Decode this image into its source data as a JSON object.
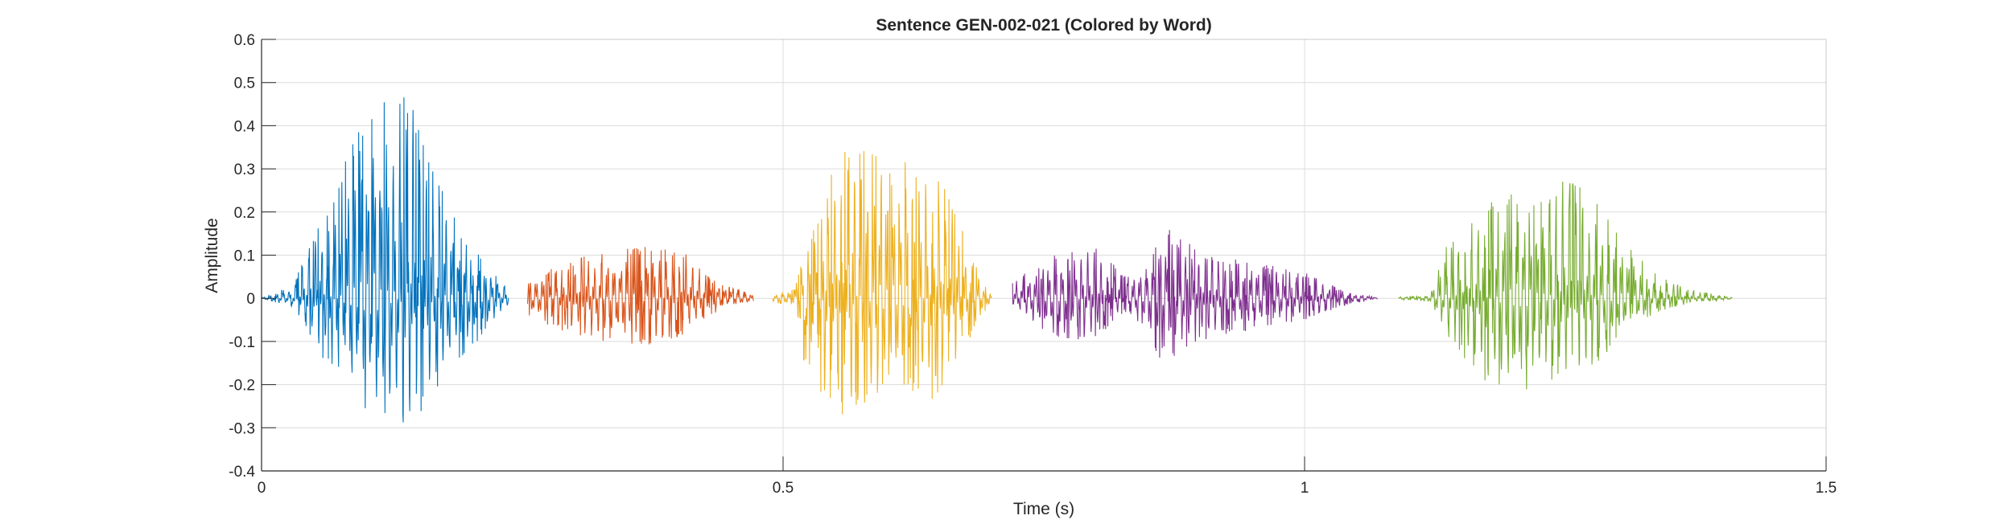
{
  "chart_data": {
    "type": "line",
    "title": "Sentence GEN-002-021 (Colored by Word)",
    "xlabel": "Time (s)",
    "ylabel": "Amplitude",
    "xlim": [
      0,
      1.5
    ],
    "ylim": [
      -0.4,
      0.6
    ],
    "x_ticks": [
      0,
      0.5,
      1,
      1.5
    ],
    "x_tick_labels": [
      "0",
      "0.5",
      "1",
      "1.5"
    ],
    "y_ticks": [
      -0.4,
      -0.3,
      -0.2,
      -0.1,
      0,
      0.1,
      0.2,
      0.3,
      0.4,
      0.5,
      0.6
    ],
    "y_tick_labels": [
      "-0.4",
      "-0.3",
      "-0.2",
      "-0.1",
      "0",
      "0.1",
      "0.2",
      "0.3",
      "0.4",
      "0.5",
      "0.6"
    ],
    "grid": true,
    "series": [
      {
        "color": "#0072BD",
        "t_start": 0.0,
        "t_end": 0.237,
        "peaks": [
          [
            0.0,
            0.002
          ],
          [
            0.03,
            0.03
          ],
          [
            0.06,
            0.2
          ],
          [
            0.09,
            0.38
          ],
          [
            0.11,
            0.48
          ],
          [
            0.135,
            0.5
          ],
          [
            0.16,
            0.36
          ],
          [
            0.19,
            0.16
          ],
          [
            0.215,
            0.08
          ],
          [
            0.237,
            0.02
          ]
        ],
        "troughs": [
          [
            0.0,
            -0.002
          ],
          [
            0.03,
            -0.02
          ],
          [
            0.06,
            -0.15
          ],
          [
            0.09,
            -0.24
          ],
          [
            0.11,
            -0.29
          ],
          [
            0.14,
            -0.32
          ],
          [
            0.17,
            -0.22
          ],
          [
            0.2,
            -0.12
          ],
          [
            0.237,
            -0.02
          ]
        ]
      },
      {
        "color": "#D95319",
        "t_start": 0.255,
        "t_end": 0.472,
        "peaks": [
          [
            0.255,
            0.05
          ],
          [
            0.28,
            0.07
          ],
          [
            0.31,
            0.1
          ],
          [
            0.35,
            0.12
          ],
          [
            0.38,
            0.12
          ],
          [
            0.41,
            0.1
          ],
          [
            0.43,
            0.05
          ],
          [
            0.45,
            0.025
          ],
          [
            0.472,
            0.01
          ]
        ],
        "troughs": [
          [
            0.255,
            -0.04
          ],
          [
            0.28,
            -0.07
          ],
          [
            0.31,
            -0.1
          ],
          [
            0.35,
            -0.11
          ],
          [
            0.38,
            -0.11
          ],
          [
            0.41,
            -0.08
          ],
          [
            0.43,
            -0.04
          ],
          [
            0.45,
            -0.02
          ],
          [
            0.472,
            -0.01
          ]
        ]
      },
      {
        "color": "#EDB120",
        "t_start": 0.49,
        "t_end": 0.7,
        "peaks": [
          [
            0.49,
            0.01
          ],
          [
            0.51,
            0.02
          ],
          [
            0.52,
            0.1
          ],
          [
            0.55,
            0.33
          ],
          [
            0.58,
            0.36
          ],
          [
            0.6,
            0.3
          ],
          [
            0.63,
            0.33
          ],
          [
            0.65,
            0.29
          ],
          [
            0.67,
            0.17
          ],
          [
            0.69,
            0.05
          ],
          [
            0.7,
            0.01
          ]
        ],
        "troughs": [
          [
            0.49,
            -0.01
          ],
          [
            0.51,
            -0.02
          ],
          [
            0.52,
            -0.15
          ],
          [
            0.55,
            -0.28
          ],
          [
            0.58,
            -0.24
          ],
          [
            0.6,
            -0.2
          ],
          [
            0.63,
            -0.22
          ],
          [
            0.65,
            -0.25
          ],
          [
            0.67,
            -0.14
          ],
          [
            0.69,
            -0.04
          ],
          [
            0.7,
            -0.01
          ]
        ]
      },
      {
        "color": "#7E2F8E",
        "t_start": 0.72,
        "t_end": 1.07,
        "peaks": [
          [
            0.72,
            0.04
          ],
          [
            0.74,
            0.07
          ],
          [
            0.77,
            0.12
          ],
          [
            0.8,
            0.12
          ],
          [
            0.83,
            0.05
          ],
          [
            0.85,
            0.08
          ],
          [
            0.865,
            0.17
          ],
          [
            0.88,
            0.14
          ],
          [
            0.91,
            0.1
          ],
          [
            0.96,
            0.08
          ],
          [
            1.0,
            0.06
          ],
          [
            1.04,
            0.015
          ],
          [
            1.07,
            0.002
          ]
        ],
        "troughs": [
          [
            0.72,
            -0.02
          ],
          [
            0.74,
            -0.07
          ],
          [
            0.77,
            -0.1
          ],
          [
            0.8,
            -0.09
          ],
          [
            0.83,
            -0.03
          ],
          [
            0.85,
            -0.08
          ],
          [
            0.865,
            -0.17
          ],
          [
            0.88,
            -0.12
          ],
          [
            0.91,
            -0.09
          ],
          [
            0.96,
            -0.07
          ],
          [
            1.0,
            -0.05
          ],
          [
            1.04,
            -0.015
          ],
          [
            1.07,
            -0.002
          ]
        ]
      },
      {
        "color": "#77AC30",
        "t_start": 1.09,
        "t_end": 1.41,
        "peaks": [
          [
            1.09,
            0.004
          ],
          [
            1.12,
            0.008
          ],
          [
            1.13,
            0.1
          ],
          [
            1.16,
            0.2
          ],
          [
            1.19,
            0.26
          ],
          [
            1.22,
            0.22
          ],
          [
            1.25,
            0.3
          ],
          [
            1.28,
            0.22
          ],
          [
            1.31,
            0.12
          ],
          [
            1.34,
            0.05
          ],
          [
            1.37,
            0.02
          ],
          [
            1.41,
            0.003
          ]
        ],
        "troughs": [
          [
            1.09,
            -0.004
          ],
          [
            1.12,
            -0.008
          ],
          [
            1.13,
            -0.06
          ],
          [
            1.16,
            -0.17
          ],
          [
            1.19,
            -0.24
          ],
          [
            1.22,
            -0.22
          ],
          [
            1.25,
            -0.2
          ],
          [
            1.28,
            -0.15
          ],
          [
            1.31,
            -0.08
          ],
          [
            1.34,
            -0.03
          ],
          [
            1.37,
            -0.01
          ],
          [
            1.41,
            -0.003
          ]
        ]
      }
    ]
  }
}
